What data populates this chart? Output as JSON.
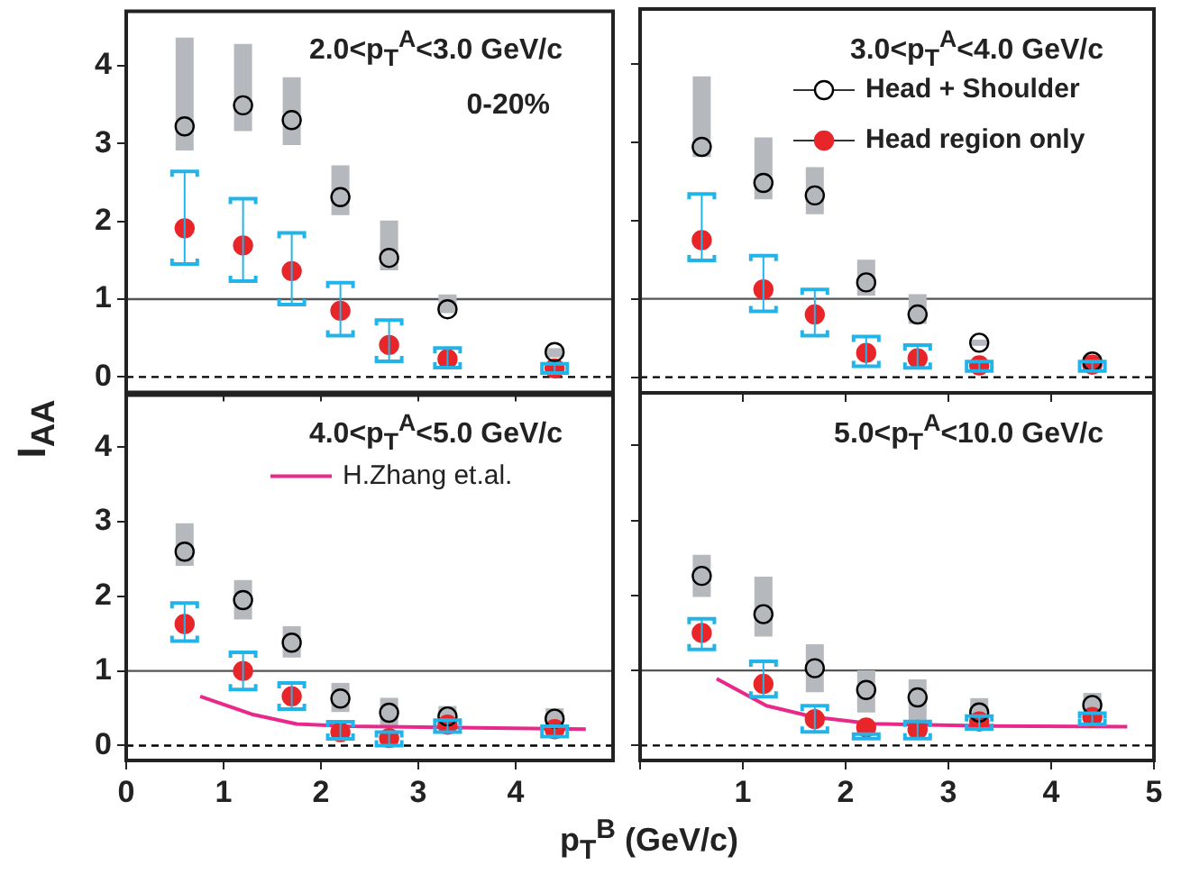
{
  "chart_data": [
    {
      "type": "scatter",
      "title": "2.0<p$_{T}$$^{A}$<3.0 GeV/c",
      "ylabel": "I$_{AA}$",
      "annotations": [
        "0-20%"
      ],
      "x": [
        0.6,
        1.2,
        1.7,
        2.2,
        2.7,
        3.3,
        4.4
      ],
      "xlim": [
        0,
        5
      ],
      "xticks": [
        0,
        1,
        2,
        3,
        4,
        5
      ],
      "ylim": [
        -0.2,
        4.7
      ],
      "yticks": [
        0,
        1,
        2,
        3,
        4
      ],
      "tick_labels": "y",
      "grid": false,
      "marker": "circle",
      "ref_lines": [
        {
          "axis": "y",
          "value": 1,
          "color": "#555555",
          "line_style": "solid"
        },
        {
          "axis": "y",
          "value": 0,
          "color": "#000000",
          "line_style": "dashed"
        }
      ],
      "series": [
        {
          "color": "#000000",
          "values": [
            3.22,
            3.49,
            3.3,
            2.31,
            1.53,
            0.87,
            0.32
          ],
          "errors": [
            [
              2.91,
              4.36
            ],
            [
              3.16,
              4.28
            ],
            [
              2.98,
              3.85
            ],
            [
              2.08,
              2.72
            ],
            [
              1.37,
              2.01
            ],
            [
              0.82,
              1.06
            ],
            [
              0.25,
              0.37
            ]
          ]
        },
        {
          "color": "#e8262a",
          "values": [
            1.91,
            1.69,
            1.36,
            0.85,
            0.41,
            0.23,
            0.11
          ],
          "errors": [
            [
              1.45,
              2.64
            ],
            [
              1.23,
              2.29
            ],
            [
              0.93,
              1.85
            ],
            [
              0.53,
              1.21
            ],
            [
              0.2,
              0.73
            ],
            [
              0.12,
              0.37
            ],
            [
              0.05,
              0.17
            ]
          ]
        }
      ]
    },
    {
      "type": "scatter",
      "title": "3.0<p$_{T}$$^{A}$<4.0 GeV/c",
      "legend": "top right",
      "x": [
        0.6,
        1.2,
        1.7,
        2.2,
        2.7,
        3.3,
        4.4
      ],
      "xlim": [
        0,
        5
      ],
      "xticks": [
        0,
        1,
        2,
        3,
        4,
        5
      ],
      "ylim": [
        -0.2,
        4.7
      ],
      "yticks": [
        0,
        1,
        2,
        3,
        4
      ],
      "tick_labels": false,
      "grid": false,
      "marker": "circle",
      "ref_lines": [
        {
          "axis": "y",
          "value": 1,
          "color": "#555555",
          "line_style": "solid"
        },
        {
          "axis": "y",
          "value": 0,
          "color": "#000000",
          "line_style": "dashed"
        }
      ],
      "series": [
        {
          "name": "Head + Shoulder",
          "color": "#000000",
          "values": [
            2.94,
            2.48,
            2.32,
            1.21,
            0.8,
            0.44,
            0.2
          ],
          "errors": [
            [
              2.81,
              3.84
            ],
            [
              2.27,
              3.06
            ],
            [
              2.08,
              2.68
            ],
            [
              1.04,
              1.5
            ],
            [
              0.68,
              1.06
            ],
            [
              0.4,
              0.48
            ],
            [
              0.11,
              0.28
            ]
          ]
        },
        {
          "name": "Head region only",
          "color": "#e8262a",
          "values": [
            1.75,
            1.12,
            0.8,
            0.31,
            0.24,
            0.15,
            0.16
          ],
          "errors": [
            [
              1.49,
              2.34
            ],
            [
              0.84,
              1.55
            ],
            [
              0.53,
              1.12
            ],
            [
              0.14,
              0.52
            ],
            [
              0.12,
              0.41
            ],
            [
              0.08,
              0.2
            ],
            [
              0.08,
              0.2
            ]
          ]
        }
      ]
    },
    {
      "type": "scatter",
      "title": "4.0<p$_{T}$$^{A}$<5.0 GeV/c",
      "xlabel": "p$_{T}$$^{B}$ (GeV/c)",
      "legend": "top",
      "x": [
        0.6,
        1.2,
        1.7,
        2.2,
        2.7,
        3.3,
        4.4
      ],
      "xlim": [
        0,
        5
      ],
      "xticks": [
        0,
        1,
        2,
        3,
        4
      ],
      "ylim": [
        -0.2,
        4.7
      ],
      "yticks": [
        0,
        1,
        2,
        3,
        4
      ],
      "grid": false,
      "marker": "circle",
      "ref_lines": [
        {
          "axis": "y",
          "value": 1,
          "color": "#555555",
          "line_style": "solid"
        },
        {
          "axis": "y",
          "value": 0,
          "color": "#000000",
          "line_style": "dashed"
        }
      ],
      "series": [
        {
          "color": "#000000",
          "values": [
            2.6,
            1.95,
            1.38,
            0.63,
            0.44,
            0.39,
            0.36
          ],
          "errors": [
            [
              2.41,
              2.98
            ],
            [
              1.69,
              2.22
            ],
            [
              1.18,
              1.6
            ],
            [
              0.45,
              0.84
            ],
            [
              0.24,
              0.64
            ],
            [
              0.29,
              0.53
            ],
            [
              0.28,
              0.5
            ]
          ]
        },
        {
          "color": "#e8262a",
          "values": [
            1.63,
            1.0,
            0.66,
            0.18,
            0.1,
            0.28,
            0.22
          ],
          "errors": [
            [
              1.4,
              1.91
            ],
            [
              0.75,
              1.25
            ],
            [
              0.49,
              0.84
            ],
            [
              0.09,
              0.32
            ],
            [
              0.0,
              0.18
            ],
            [
              0.18,
              0.34
            ],
            [
              0.12,
              0.26
            ]
          ]
        },
        {
          "name": "H.Zhang et.al.",
          "type": "line",
          "marker": "none",
          "color": "#e8298a",
          "x": [
            0.76,
            1.29,
            1.75,
            2.28,
            4.72
          ],
          "values": [
            0.66,
            0.42,
            0.29,
            0.26,
            0.22
          ]
        }
      ]
    },
    {
      "type": "scatter",
      "title": "5.0<p$_{T}$$^{A}$<10.0 GeV/c",
      "x": [
        0.6,
        1.2,
        1.7,
        2.2,
        2.7,
        3.3,
        4.4
      ],
      "xlim": [
        0,
        5
      ],
      "xticks": [
        {
          "value": 0,
          "label": null
        },
        1,
        2,
        3,
        4,
        5
      ],
      "ylim": [
        -0.2,
        4.7
      ],
      "yticks": [
        0,
        1,
        2,
        3,
        4
      ],
      "tick_labels": "x",
      "grid": false,
      "marker": "circle",
      "ref_lines": [
        {
          "axis": "y",
          "value": 1,
          "color": "#555555",
          "line_style": "solid"
        },
        {
          "axis": "y",
          "value": 0,
          "color": "#000000",
          "line_style": "dashed"
        }
      ],
      "series": [
        {
          "color": "#000000",
          "values": [
            2.26,
            1.75,
            1.03,
            0.74,
            0.64,
            0.44,
            0.54
          ],
          "errors": [
            [
              1.98,
              2.54
            ],
            [
              1.45,
              2.25
            ],
            [
              0.71,
              1.35
            ],
            [
              0.44,
              1.0
            ],
            [
              0.28,
              0.88
            ],
            [
              0.32,
              0.63
            ],
            [
              0.42,
              0.7
            ]
          ]
        },
        {
          "color": "#e8262a",
          "values": [
            1.5,
            0.82,
            0.35,
            0.24,
            0.21,
            0.32,
            0.38
          ],
          "errors": [
            [
              1.28,
              1.69
            ],
            [
              0.65,
              1.12
            ],
            [
              0.18,
              0.53
            ],
            [
              0.09,
              0.15
            ],
            [
              0.09,
              0.32
            ],
            [
              0.22,
              0.39
            ],
            [
              0.28,
              0.43
            ]
          ]
        },
        {
          "type": "line",
          "marker": "none",
          "color": "#e8298a",
          "x": [
            0.745,
            1.23,
            1.69,
            2.26,
            3.39,
            4.74
          ],
          "values": [
            0.89,
            0.53,
            0.38,
            0.29,
            0.26,
            0.25
          ]
        }
      ]
    }
  ]
}
